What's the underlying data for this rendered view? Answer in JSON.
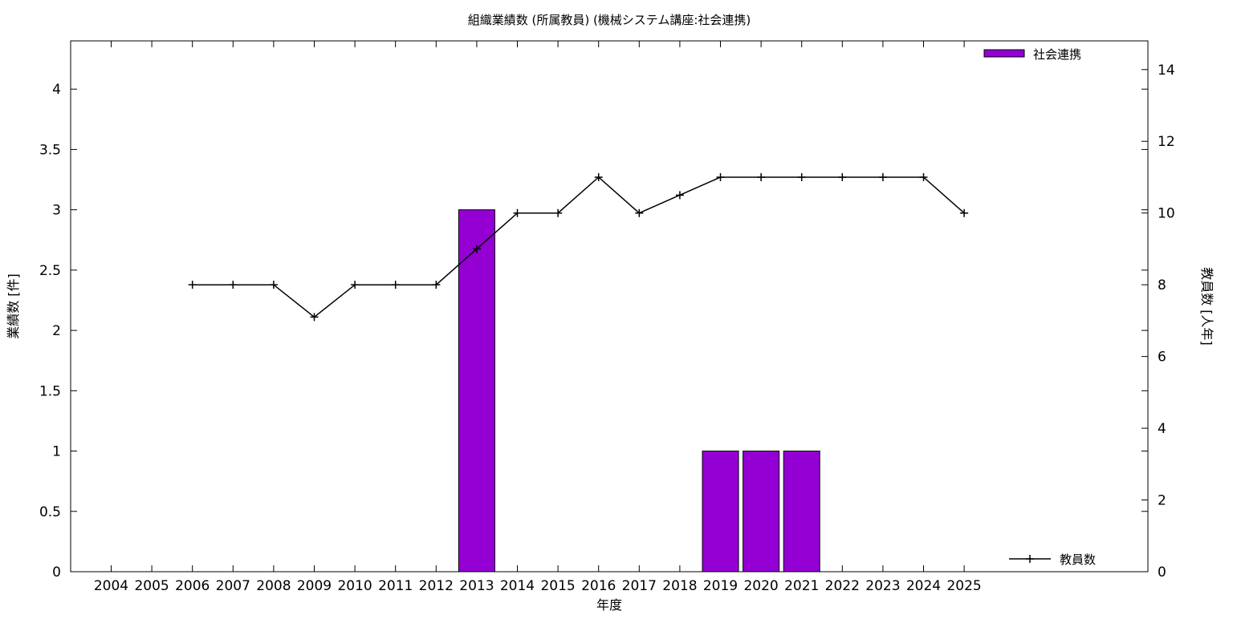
{
  "chart_data": {
    "type": "bar",
    "title": "組織業績数 (所属教員) (機械システム講座:社会連携)",
    "xlabel": "年度",
    "ylabel": "業績数 [件]",
    "y2label": "教員数 [人年]",
    "categories": [
      "2004",
      "2005",
      "2006",
      "2007",
      "2008",
      "2009",
      "2010",
      "2011",
      "2012",
      "2013",
      "2014",
      "2015",
      "2016",
      "2017",
      "2018",
      "2019",
      "2020",
      "2021",
      "2022",
      "2023",
      "2024",
      "2025"
    ],
    "ylim": [
      0,
      4.4
    ],
    "y2lim": [
      0,
      14.8
    ],
    "yticks": [
      "0",
      "0.5",
      "1",
      "1.5",
      "2",
      "2.5",
      "3",
      "3.5",
      "4"
    ],
    "y2ticks": [
      "0",
      "2",
      "4",
      "6",
      "8",
      "10",
      "12",
      "14"
    ],
    "series": [
      {
        "name": "社会連携",
        "type": "bar",
        "axis": "left",
        "color": "#9400d3",
        "values": [
          null,
          null,
          null,
          null,
          null,
          null,
          null,
          null,
          null,
          3,
          null,
          null,
          null,
          null,
          null,
          1,
          1,
          1,
          null,
          null,
          null,
          null
        ]
      },
      {
        "name": "教員数",
        "type": "line",
        "axis": "right",
        "color": "#000000",
        "values": [
          null,
          null,
          8,
          8,
          8,
          7.1,
          8,
          8,
          8,
          9,
          10,
          10,
          11,
          10,
          10.5,
          11,
          11,
          11,
          11,
          11,
          11,
          10
        ]
      }
    ],
    "legend": [
      "top-right",
      "bottom-right"
    ],
    "grid": false
  }
}
